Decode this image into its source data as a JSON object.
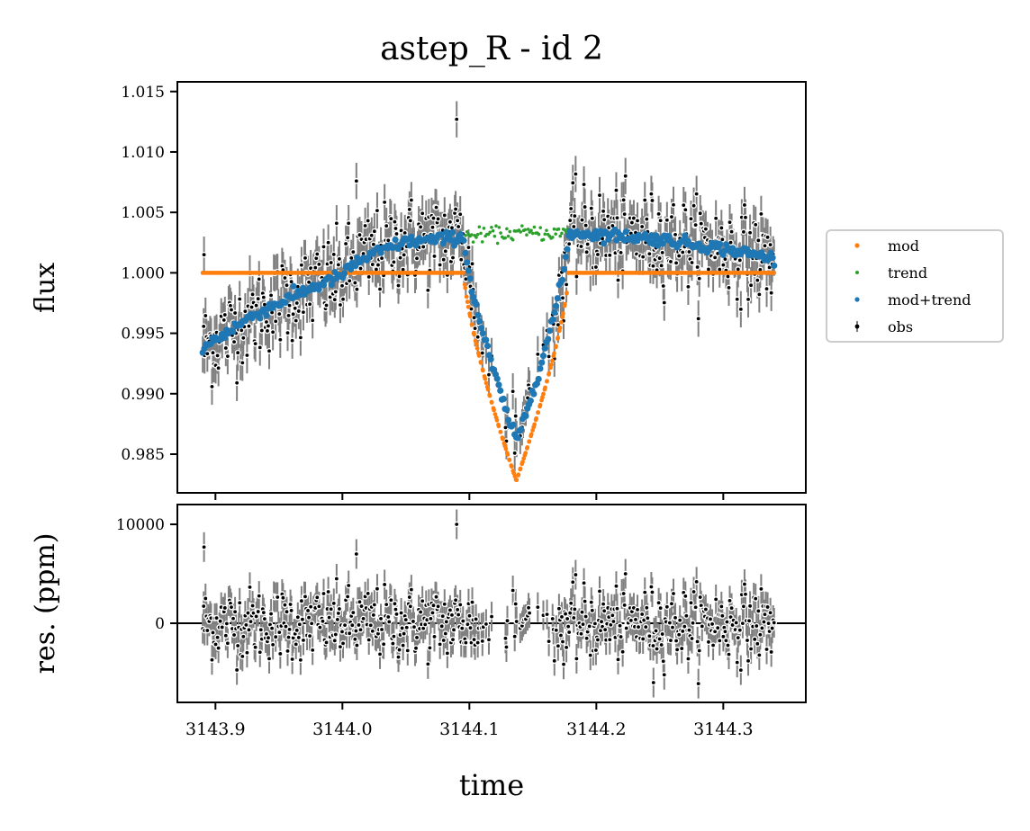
{
  "chart_data": [
    {
      "type": "scatter",
      "panel": "main",
      "title": "astep_R - id 2",
      "ylabel": "flux",
      "xlabel": "",
      "xlim": [
        3143.87,
        3144.365
      ],
      "ylim": [
        0.9818,
        1.0158
      ],
      "xticks": [
        3143.9,
        3144.0,
        3144.1,
        3144.2,
        3144.3
      ],
      "yticks": [
        0.985,
        0.99,
        0.995,
        1.0,
        1.005,
        1.01,
        1.015
      ],
      "ytick_labels": [
        "0.985",
        "0.990",
        "0.995",
        "1.000",
        "1.005",
        "1.010",
        "1.015"
      ],
      "grid": false,
      "legend_position": "outside-right",
      "model": {
        "baseline": 1.0,
        "transit_start": 3144.095,
        "transit_end": 3144.178,
        "transit_min_time": 3144.137,
        "transit_min_flux": 0.9828
      },
      "trend_description_points": {
        "x": [
          3143.89,
          3143.93,
          3143.97,
          3144.0,
          3144.01,
          3144.03,
          3144.05,
          3144.07,
          3144.095,
          3144.12,
          3144.14,
          3144.16,
          3144.178,
          3144.2,
          3144.25,
          3144.3,
          3144.34
        ],
        "y": [
          0.9938,
          0.9965,
          0.9985,
          0.9998,
          1.0008,
          1.0018,
          1.0026,
          1.0027,
          1.003,
          1.0032,
          1.0033,
          1.0033,
          1.0033,
          1.0032,
          1.0028,
          1.002,
          1.0012
        ]
      },
      "series": [
        {
          "name": "mod",
          "color": "#ff7f0e",
          "marker": "dot"
        },
        {
          "name": "trend",
          "color": "#2ca02c",
          "marker": "dot"
        },
        {
          "name": "mod+trend",
          "color": "#1f77b4",
          "marker": "dot"
        },
        {
          "name": "obs",
          "color": "#000000",
          "marker": "errorbar",
          "errorbar_color": "#808080"
        }
      ],
      "outliers": {
        "x": [
          3143.891,
          3144.011,
          3144.09
        ],
        "y": [
          1.0015,
          1.0076,
          1.0127
        ]
      }
    },
    {
      "type": "scatter",
      "panel": "residuals",
      "ylabel": "res. (ppm)",
      "xlabel": "time",
      "xlim": [
        3143.87,
        3144.365
      ],
      "ylim": [
        -8000,
        12000
      ],
      "xticks": [
        3143.9,
        3144.0,
        3144.1,
        3144.2,
        3144.3
      ],
      "xtick_labels": [
        "3143.9",
        "3144.0",
        "3144.1",
        "3144.2",
        "3144.3"
      ],
      "yticks": [
        0,
        10000
      ],
      "ytick_labels": [
        "0",
        "10000"
      ],
      "zero_line": true,
      "grid": false,
      "outliers": {
        "x": [
          3143.891,
          3144.011,
          3144.09,
          3144.245
        ],
        "y": [
          7700,
          7000,
          10000,
          -6000
        ]
      }
    }
  ]
}
